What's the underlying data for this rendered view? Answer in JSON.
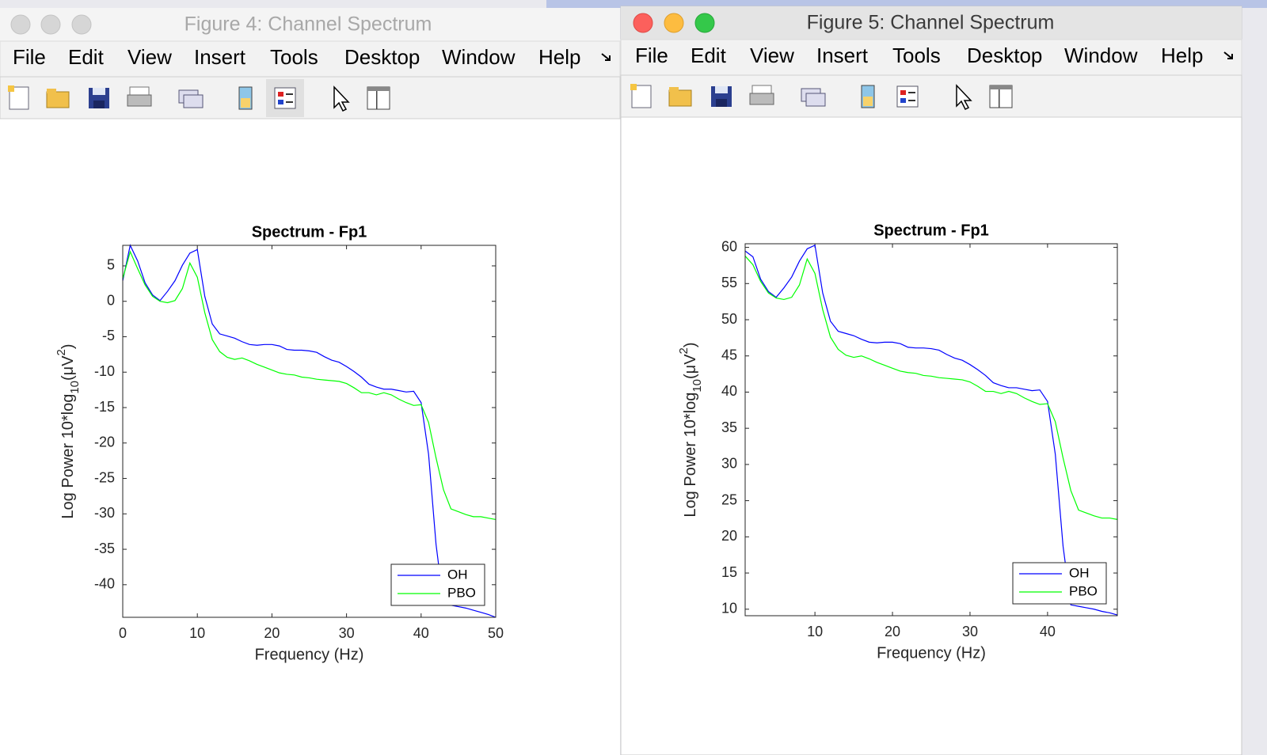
{
  "windows": [
    {
      "title": "Figure 4: Channel Spectrum",
      "menu": [
        "File",
        "Edit",
        "View",
        "Insert",
        "Tools",
        "Desktop",
        "Window",
        "Help"
      ]
    },
    {
      "title": "Figure 5: Channel Spectrum",
      "menu": [
        "File",
        "Edit",
        "View",
        "Insert",
        "Tools",
        "Desktop",
        "Window",
        "Help"
      ]
    }
  ],
  "chart_data": [
    {
      "type": "line",
      "title": "Spectrum - Fp1",
      "x_label": "Frequency (Hz)",
      "y_label": [
        "Log Power 10*log",
        "10",
        "(μV",
        "2",
        ")"
      ],
      "x": [
        0,
        1,
        2,
        3,
        4,
        5,
        6,
        7,
        8,
        9,
        10,
        11,
        12,
        13,
        14,
        15,
        16,
        17,
        18,
        19,
        20,
        21,
        22,
        23,
        24,
        25,
        26,
        27,
        28,
        29,
        30,
        31,
        32,
        33,
        34,
        35,
        36,
        37,
        38,
        39,
        40,
        41,
        42,
        43,
        44,
        45,
        46,
        47,
        48,
        49,
        50
      ],
      "xlim": [
        0,
        50
      ],
      "xticks": [
        0,
        10,
        20,
        30,
        40,
        50
      ],
      "ylim": [
        -44.6,
        7.9
      ],
      "yticks": [
        -40,
        -35,
        -30,
        -25,
        -20,
        -15,
        -10,
        -5,
        0,
        5
      ],
      "grid": false,
      "legend": "southeast",
      "series": [
        {
          "name": "OH",
          "color": "#0000ff",
          "values": [
            2.9,
            7.9,
            5.7,
            2.6,
            0.9,
            0.1,
            1.4,
            2.9,
            5.1,
            6.8,
            7.3,
            0.7,
            -3.2,
            -4.6,
            -4.9,
            -5.2,
            -5.7,
            -6.1,
            -6.2,
            -6.1,
            -6.1,
            -6.3,
            -6.8,
            -6.9,
            -6.9,
            -7.0,
            -7.2,
            -7.8,
            -8.3,
            -8.6,
            -9.2,
            -9.9,
            -10.7,
            -11.7,
            -12.1,
            -12.4,
            -12.4,
            -12.6,
            -12.8,
            -12.7,
            -14.3,
            -21.6,
            -34.3,
            -42.7,
            -42.9,
            -43.1,
            -43.3,
            -43.6,
            -43.9,
            -44.2,
            -44.6
          ]
        },
        {
          "name": "PBO",
          "color": "#00ff00",
          "values": [
            3.2,
            7.0,
            4.6,
            2.3,
            0.7,
            0,
            -0.2,
            0.1,
            1.8,
            5.4,
            3.4,
            -1.6,
            -5.4,
            -7.1,
            -7.9,
            -8.2,
            -8.0,
            -8.4,
            -8.9,
            -9.3,
            -9.7,
            -10.1,
            -10.3,
            -10.4,
            -10.7,
            -10.8,
            -11.0,
            -11.1,
            -11.2,
            -11.3,
            -11.6,
            -12.2,
            -12.9,
            -12.9,
            -13.2,
            -12.9,
            -13.2,
            -13.8,
            -14.3,
            -14.7,
            -14.6,
            -17.1,
            -22.1,
            -26.6,
            -29.3,
            -29.7,
            -30.1,
            -30.4,
            -30.4,
            -30.6,
            -30.8
          ]
        }
      ]
    },
    {
      "type": "line",
      "title": "Spectrum - Fp1",
      "x_label": "Frequency (Hz)",
      "y_label": [
        "Log Power 10*log",
        "10",
        "(μV",
        "2",
        ")"
      ],
      "x": [
        1,
        2,
        3,
        4,
        5,
        6,
        7,
        8,
        9,
        10,
        11,
        12,
        13,
        14,
        15,
        16,
        17,
        18,
        19,
        20,
        21,
        22,
        23,
        24,
        25,
        26,
        27,
        28,
        29,
        30,
        31,
        32,
        33,
        34,
        35,
        36,
        37,
        38,
        39,
        40,
        41,
        42,
        43,
        44,
        45,
        46,
        47,
        48,
        49
      ],
      "xlim": [
        1,
        49
      ],
      "xticks": [
        10,
        20,
        30,
        40
      ],
      "ylim": [
        9.1,
        60.5
      ],
      "yticks": [
        10,
        15,
        20,
        25,
        30,
        35,
        40,
        45,
        50,
        55,
        60
      ],
      "grid": false,
      "legend": "southeast",
      "series": [
        {
          "name": "OH",
          "color": "#0000ff",
          "values": [
            59.5,
            58.7,
            55.6,
            53.9,
            53.1,
            54.4,
            55.9,
            58.1,
            59.8,
            60.3,
            53.7,
            49.8,
            48.4,
            48.1,
            47.8,
            47.3,
            46.9,
            46.8,
            46.9,
            46.9,
            46.7,
            46.2,
            46.1,
            46.1,
            46.0,
            45.8,
            45.2,
            44.7,
            44.4,
            43.8,
            43.1,
            42.3,
            41.3,
            40.9,
            40.6,
            40.6,
            40.4,
            40.2,
            40.3,
            38.7,
            31.4,
            18.7,
            10.6,
            10.4,
            10.2,
            10.0,
            9.7,
            9.5,
            9.2
          ]
        },
        {
          "name": "PBO",
          "color": "#00ff00",
          "values": [
            58.8,
            57.6,
            55.3,
            53.7,
            53.0,
            52.8,
            53.1,
            54.8,
            58.4,
            56.4,
            51.4,
            47.6,
            45.9,
            45.1,
            44.8,
            45.0,
            44.6,
            44.1,
            43.7,
            43.3,
            42.9,
            42.7,
            42.6,
            42.3,
            42.2,
            42.0,
            41.9,
            41.8,
            41.7,
            41.4,
            40.8,
            40.1,
            40.1,
            39.8,
            40.1,
            39.8,
            39.2,
            38.7,
            38.3,
            38.4,
            35.9,
            30.9,
            26.4,
            23.7,
            23.3,
            22.9,
            22.6,
            22.6,
            22.4
          ]
        }
      ]
    }
  ]
}
